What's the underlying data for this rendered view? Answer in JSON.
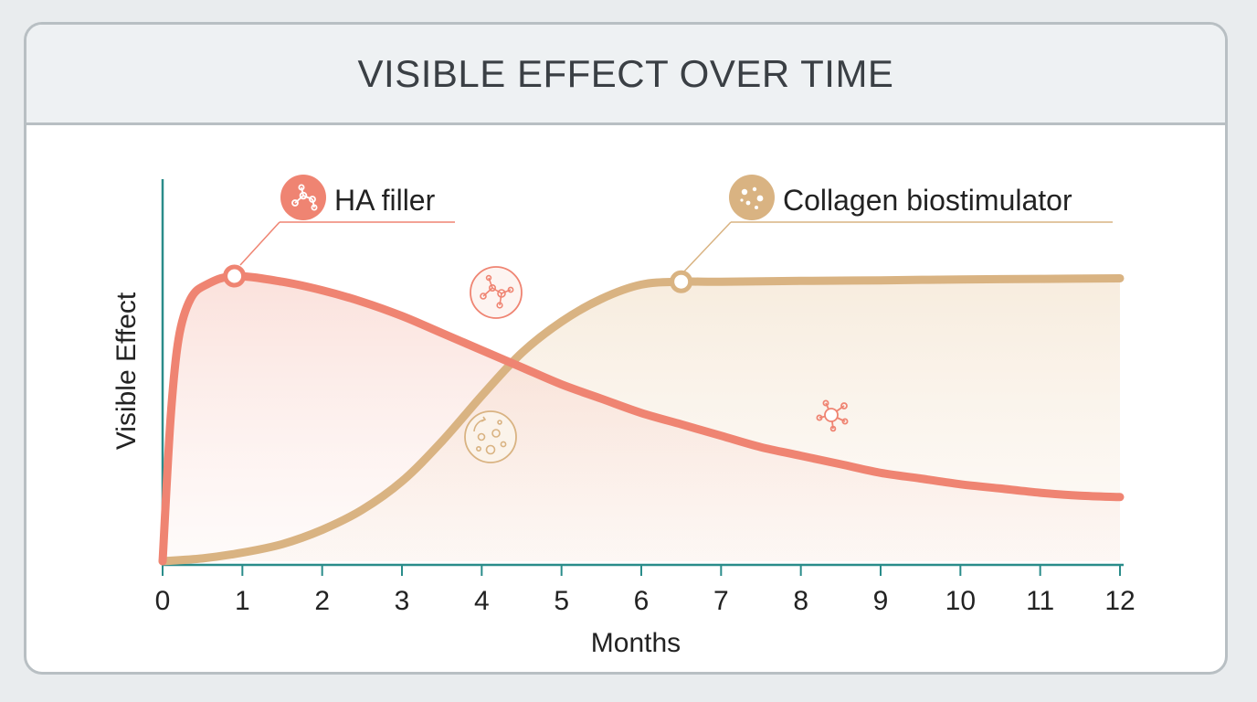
{
  "chart_data": {
    "type": "line",
    "title": "VISIBLE EFFECT OVER TIME",
    "xlabel": "Months",
    "ylabel": "Visible Effect",
    "xlim": [
      0,
      12
    ],
    "ylim": [
      0,
      100
    ],
    "x_ticks": [
      0,
      1,
      2,
      3,
      4,
      5,
      6,
      7,
      8,
      9,
      10,
      11,
      12
    ],
    "grid": false,
    "legend": "inline-top",
    "series": [
      {
        "name": "HA filler",
        "color": "#ef8472",
        "icon": "molecule-icon",
        "x": [
          0,
          0.1,
          0.2,
          0.35,
          0.55,
          0.9,
          1.5,
          2,
          2.5,
          3,
          3.5,
          4,
          4.5,
          5,
          5.5,
          6,
          6.5,
          7,
          7.5,
          8,
          8.5,
          9,
          9.5,
          10,
          10.5,
          11,
          11.5,
          12
        ],
        "y": [
          0,
          50,
          78,
          92,
          97,
          100,
          98,
          95,
          91,
          86,
          80,
          74,
          68,
          62,
          57,
          52,
          48,
          44,
          40,
          37,
          34,
          31,
          29,
          27,
          25.5,
          24,
          23,
          22.5
        ]
      },
      {
        "name": "Collagen biostimulator",
        "color": "#d9b382",
        "icon": "particles-icon",
        "x": [
          0,
          0.5,
          1,
          1.5,
          2,
          2.5,
          3,
          3.5,
          4,
          4.5,
          5,
          5.5,
          6,
          6.5,
          7,
          8,
          9,
          10,
          11,
          12
        ],
        "y": [
          0,
          1,
          3,
          6,
          11,
          18,
          28,
          42,
          58,
          73,
          84,
          92,
          97,
          98,
          98,
          98.3,
          98.5,
          98.8,
          99,
          99.2
        ]
      }
    ],
    "markers": [
      {
        "series": 0,
        "x": 0.9,
        "y": 100
      },
      {
        "series": 1,
        "x": 6.5,
        "y": 98
      }
    ]
  }
}
